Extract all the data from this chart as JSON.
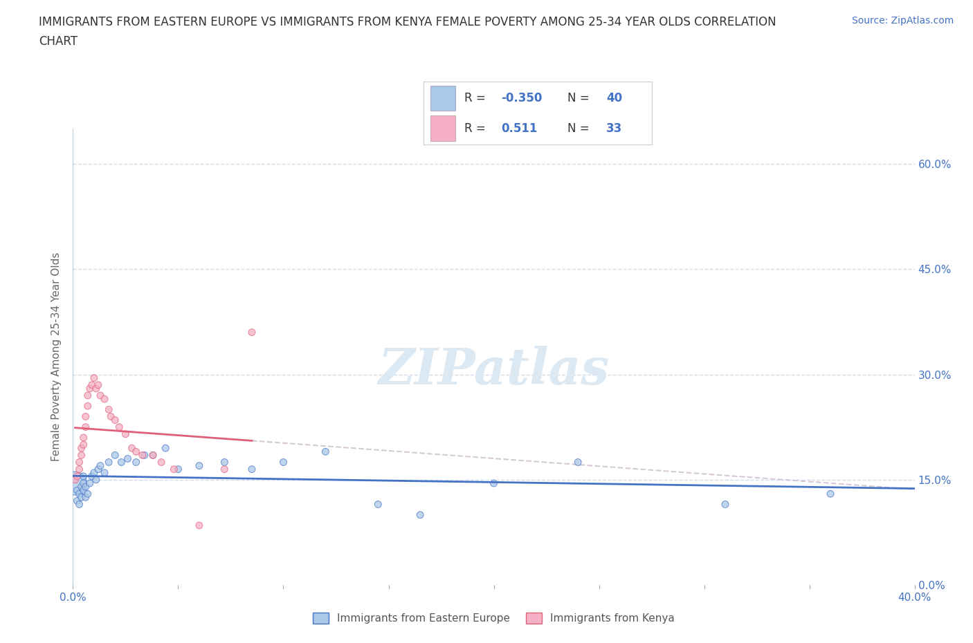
{
  "title_line1": "IMMIGRANTS FROM EASTERN EUROPE VS IMMIGRANTS FROM KENYA FEMALE POVERTY AMONG 25-34 YEAR OLDS CORRELATION",
  "title_line2": "CHART",
  "source": "Source: ZipAtlas.com",
  "ylabel": "Female Poverty Among 25-34 Year Olds",
  "xlim": [
    0.0,
    0.4
  ],
  "ylim": [
    0.0,
    0.65
  ],
  "yticks_right": [
    0.0,
    0.15,
    0.3,
    0.45,
    0.6
  ],
  "ytick_labels_right": [
    "0.0%",
    "15.0%",
    "30.0%",
    "45.0%",
    "60.0%"
  ],
  "r_ee": -0.35,
  "n_ee": 40,
  "r_k": 0.511,
  "n_k": 33,
  "color_ee": "#aac8e8",
  "color_k": "#f5b0c5",
  "line_color_ee": "#4472c4",
  "line_color_k": "#e0607a",
  "watermark_color": "#dce8f2",
  "background_color": "#ffffff",
  "grid_color": "#d0dcea",
  "eastern_europe_x": [
    0.001,
    0.002,
    0.002,
    0.003,
    0.003,
    0.004,
    0.004,
    0.005,
    0.005,
    0.005,
    0.006,
    0.006,
    0.007,
    0.008,
    0.009,
    0.01,
    0.011,
    0.012,
    0.013,
    0.015,
    0.017,
    0.02,
    0.023,
    0.026,
    0.03,
    0.034,
    0.038,
    0.044,
    0.05,
    0.06,
    0.072,
    0.085,
    0.1,
    0.12,
    0.145,
    0.165,
    0.2,
    0.24,
    0.31,
    0.36
  ],
  "eastern_europe_y": [
    0.145,
    0.135,
    0.12,
    0.13,
    0.115,
    0.14,
    0.125,
    0.155,
    0.145,
    0.135,
    0.14,
    0.125,
    0.13,
    0.145,
    0.155,
    0.16,
    0.15,
    0.165,
    0.17,
    0.16,
    0.175,
    0.185,
    0.175,
    0.18,
    0.175,
    0.185,
    0.185,
    0.195,
    0.165,
    0.17,
    0.175,
    0.165,
    0.175,
    0.19,
    0.115,
    0.1,
    0.145,
    0.175,
    0.115,
    0.13
  ],
  "eastern_europe_size": [
    600,
    50,
    50,
    50,
    50,
    50,
    50,
    50,
    50,
    50,
    50,
    50,
    50,
    50,
    50,
    50,
    50,
    50,
    50,
    50,
    50,
    50,
    50,
    50,
    50,
    50,
    50,
    50,
    50,
    50,
    50,
    50,
    50,
    50,
    50,
    50,
    50,
    50,
    50,
    50
  ],
  "kenya_x": [
    0.001,
    0.002,
    0.003,
    0.003,
    0.004,
    0.004,
    0.005,
    0.005,
    0.006,
    0.006,
    0.007,
    0.007,
    0.008,
    0.009,
    0.01,
    0.011,
    0.012,
    0.013,
    0.015,
    0.017,
    0.018,
    0.02,
    0.022,
    0.025,
    0.028,
    0.03,
    0.033,
    0.038,
    0.042,
    0.048,
    0.06,
    0.072,
    0.085
  ],
  "kenya_y": [
    0.15,
    0.155,
    0.165,
    0.175,
    0.185,
    0.195,
    0.2,
    0.21,
    0.225,
    0.24,
    0.255,
    0.27,
    0.28,
    0.285,
    0.295,
    0.28,
    0.285,
    0.27,
    0.265,
    0.25,
    0.24,
    0.235,
    0.225,
    0.215,
    0.195,
    0.19,
    0.185,
    0.185,
    0.175,
    0.165,
    0.085,
    0.165,
    0.36
  ],
  "kenya_size": [
    50,
    50,
    50,
    50,
    50,
    50,
    50,
    50,
    50,
    50,
    50,
    50,
    50,
    50,
    50,
    50,
    50,
    50,
    50,
    50,
    50,
    50,
    50,
    50,
    50,
    50,
    50,
    50,
    50,
    50,
    50,
    50,
    50
  ],
  "legend_r_ee_text": "-0.350",
  "legend_n_ee_text": "40",
  "legend_r_k_text": "0.511",
  "legend_n_k_text": "33",
  "legend_label_ee": "Immigrants from Eastern Europe",
  "legend_label_k": "Immigrants from Kenya"
}
